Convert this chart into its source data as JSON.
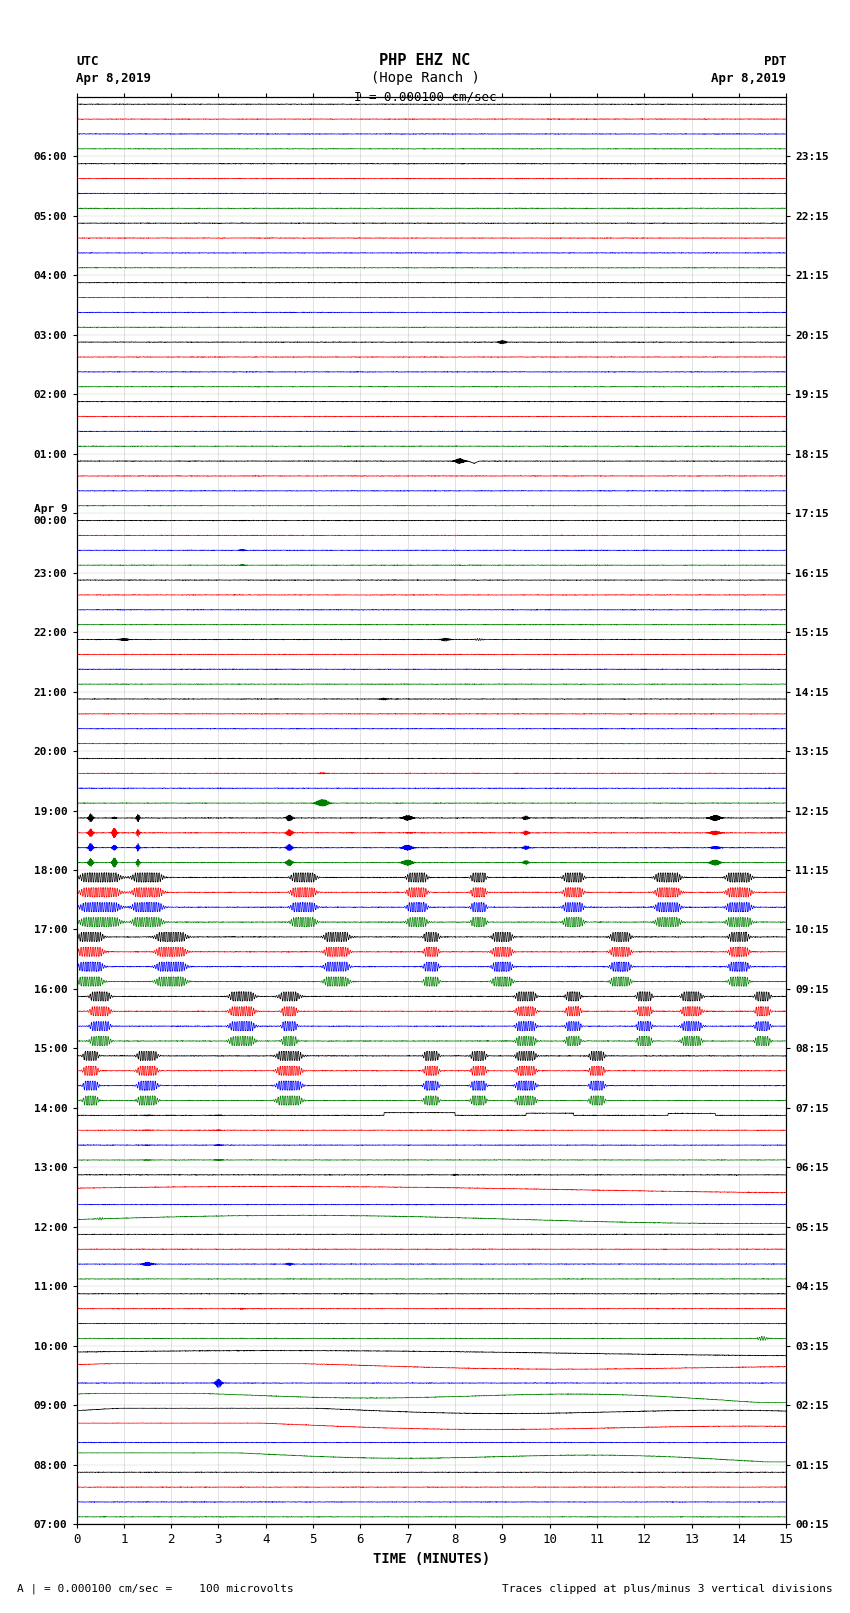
{
  "title_line1": "PHP EHZ NC",
  "title_line2": "(Hope Ranch )",
  "scale_text": "I = 0.000100 cm/sec",
  "xlabel": "TIME (MINUTES)",
  "footer_left": "A | = 0.000100 cm/sec =    100 microvolts",
  "footer_right": "Traces clipped at plus/minus 3 vertical divisions",
  "x_ticks": [
    0,
    1,
    2,
    3,
    4,
    5,
    6,
    7,
    8,
    9,
    10,
    11,
    12,
    13,
    14,
    15
  ],
  "utc_labels": [
    "07:00",
    "08:00",
    "09:00",
    "10:00",
    "11:00",
    "12:00",
    "13:00",
    "14:00",
    "15:00",
    "16:00",
    "17:00",
    "18:00",
    "19:00",
    "20:00",
    "21:00",
    "22:00",
    "23:00",
    "Apr 9\n00:00",
    "01:00",
    "02:00",
    "03:00",
    "04:00",
    "05:00",
    "06:00"
  ],
  "pdt_labels": [
    "00:15",
    "01:15",
    "02:15",
    "03:15",
    "04:15",
    "05:15",
    "06:15",
    "07:15",
    "08:15",
    "09:15",
    "10:15",
    "11:15",
    "12:15",
    "13:15",
    "14:15",
    "15:15",
    "16:15",
    "17:15",
    "18:15",
    "19:15",
    "20:15",
    "21:15",
    "22:15",
    "23:15"
  ],
  "n_rows": 24,
  "colors": [
    "black",
    "red",
    "blue",
    "green"
  ],
  "bg_color": "white",
  "fig_width": 8.5,
  "fig_height": 16.13,
  "dpi": 100
}
